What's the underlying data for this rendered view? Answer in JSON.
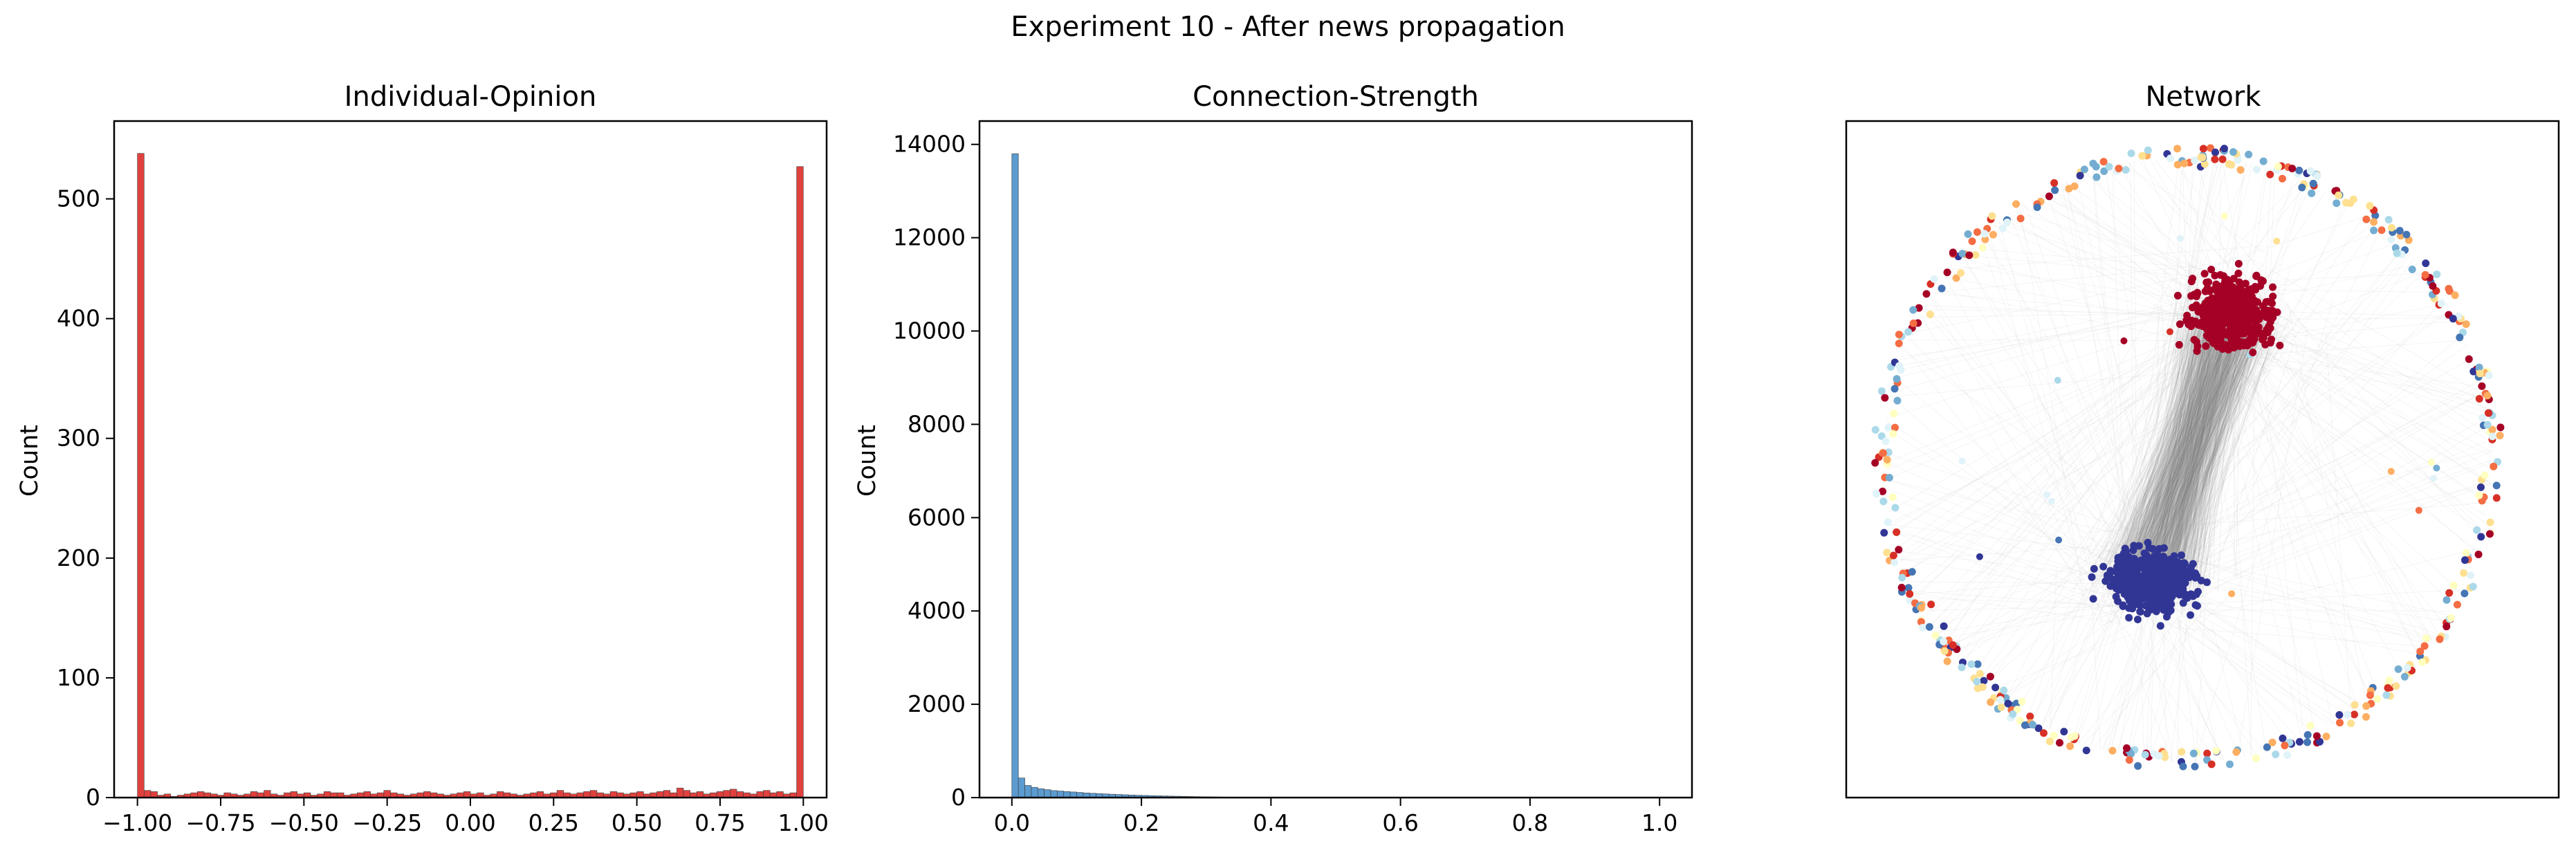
{
  "figure": {
    "title": "Experiment 10 - After news propagation"
  },
  "chart_data": [
    {
      "type": "bar",
      "subtype": "histogram",
      "title": "Individual-Opinion",
      "ylabel": "Count",
      "xlim": [
        -1.07,
        1.07
      ],
      "ylim": [
        0,
        565
      ],
      "xticks": [
        -1.0,
        -0.75,
        -0.5,
        -0.25,
        0.0,
        0.25,
        0.5,
        0.75,
        1.0
      ],
      "xtick_labels": [
        "−1.00",
        "−0.75",
        "−0.50",
        "−0.25",
        "0.00",
        "0.25",
        "0.50",
        "0.75",
        "1.00"
      ],
      "yticks": [
        0,
        100,
        200,
        300,
        400,
        500
      ],
      "ytick_labels": [
        "0",
        "100",
        "200",
        "300",
        "400",
        "500"
      ],
      "bin_start": -1.0,
      "bin_width": 0.02,
      "values": [
        538,
        6,
        5,
        2,
        3,
        1,
        2,
        3,
        4,
        5,
        4,
        3,
        2,
        4,
        3,
        2,
        3,
        5,
        4,
        6,
        3,
        2,
        4,
        5,
        3,
        4,
        2,
        3,
        5,
        4,
        4,
        2,
        3,
        4,
        5,
        3,
        4,
        6,
        4,
        3,
        2,
        3,
        4,
        5,
        4,
        3,
        2,
        3,
        4,
        5,
        3,
        4,
        2,
        3,
        5,
        4,
        3,
        2,
        3,
        4,
        5,
        3,
        4,
        6,
        4,
        3,
        4,
        5,
        6,
        4,
        3,
        5,
        4,
        3,
        4,
        5,
        3,
        4,
        5,
        6,
        4,
        8,
        6,
        4,
        5,
        3,
        4,
        5,
        6,
        7,
        5,
        4,
        3,
        5,
        6,
        4,
        5,
        3,
        4,
        527
      ],
      "color": "#e0413e"
    },
    {
      "type": "bar",
      "subtype": "histogram",
      "title": "Connection-Strength",
      "ylabel": "Count",
      "xlim": [
        -0.05,
        1.05
      ],
      "ylim": [
        0,
        14500
      ],
      "xticks": [
        0.0,
        0.2,
        0.4,
        0.6,
        0.8,
        1.0
      ],
      "xtick_labels": [
        "0.0",
        "0.2",
        "0.4",
        "0.6",
        "0.8",
        "1.0"
      ],
      "yticks": [
        0,
        2000,
        4000,
        6000,
        8000,
        10000,
        12000,
        14000
      ],
      "ytick_labels": [
        "0",
        "2000",
        "4000",
        "6000",
        "8000",
        "10000",
        "12000",
        "14000"
      ],
      "bin_start": 0.0,
      "bin_width": 0.01,
      "values": [
        13800,
        420,
        260,
        220,
        190,
        170,
        150,
        140,
        130,
        120,
        110,
        100,
        92,
        85,
        78,
        72,
        66,
        60,
        55,
        50,
        46,
        42,
        38,
        35,
        32,
        29,
        26,
        23,
        20,
        18,
        16,
        14,
        12,
        10,
        9,
        8,
        7,
        6,
        5,
        5,
        4,
        4,
        3,
        3,
        3,
        2,
        2,
        2,
        2,
        2,
        2,
        1,
        1,
        1,
        1,
        1,
        1,
        1,
        1,
        1,
        1,
        1,
        1,
        1,
        1,
        1,
        1,
        1,
        1,
        1,
        1,
        1,
        1,
        1,
        1,
        1,
        1,
        1,
        1,
        1,
        1,
        1,
        1,
        1,
        1,
        1,
        1,
        1,
        1,
        1,
        1,
        1,
        1,
        1,
        1,
        1,
        1,
        1,
        1,
        1
      ],
      "color": "#5b9bd0"
    },
    {
      "type": "scatter",
      "subtype": "network",
      "title": "Network",
      "axes_visible": false,
      "colormap": [
        "#a50026",
        "#d73027",
        "#f46d43",
        "#fdae61",
        "#fee090",
        "#ffffbf",
        "#e0f3f8",
        "#abd9e9",
        "#74add1",
        "#4575b4",
        "#313695"
      ],
      "clusters": [
        {
          "opinion": 1.0,
          "color": "#a50026"
        },
        {
          "opinion": -1.0,
          "color": "#313695"
        }
      ],
      "edge_color": "#808080"
    }
  ]
}
